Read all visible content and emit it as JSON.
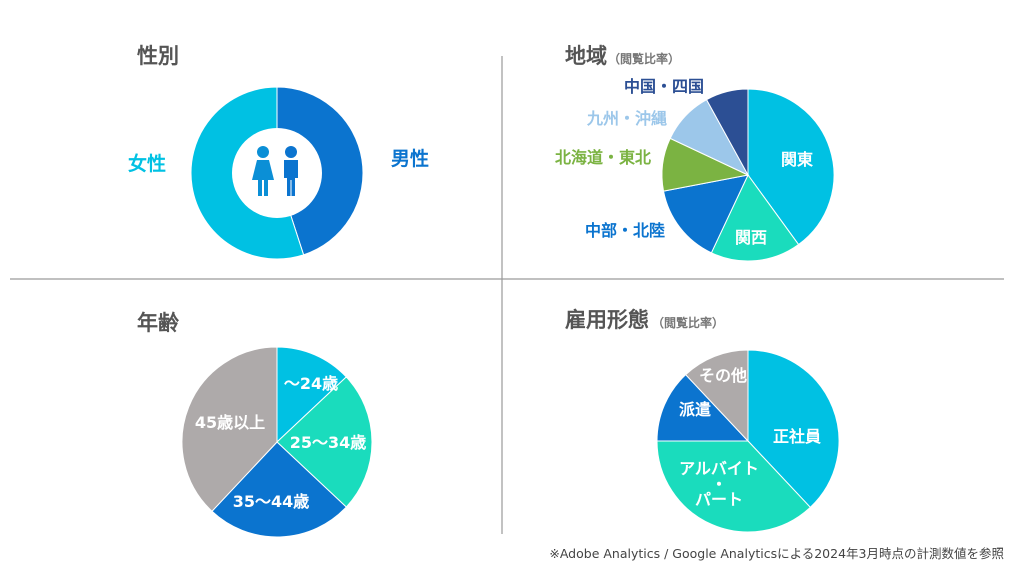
{
  "colors": {
    "cyan": "#00C1E3",
    "blue": "#0B74CF",
    "teal": "#1ADCBD",
    "gray": "#AEAAAA",
    "green": "#7BB342",
    "lightblue": "#9CC7EA",
    "navy": "#2C4F94",
    "divider": "#9A9A9A",
    "title": "#555555"
  },
  "panels": {
    "gender": {
      "title": "性別",
      "subtitle": ""
    },
    "region": {
      "title": "地域",
      "subtitle": "（閲覧比率）"
    },
    "age": {
      "title": "年齢",
      "subtitle": ""
    },
    "employment": {
      "title": "雇用形態",
      "subtitle": "（閲覧比率）"
    }
  },
  "gender_icons": [
    "female-person-icon",
    "male-person-icon"
  ],
  "footnote": "※Adobe Analytics / Google Analyticsによる2024年3月時点の計測数値を参照",
  "chart_data": [
    {
      "id": "gender",
      "type": "pie",
      "donut": true,
      "title": "性別",
      "start_angle_deg": 0,
      "slices": [
        {
          "label": "男性",
          "value": 45,
          "color": "#0B74CF"
        },
        {
          "label": "女性",
          "value": 55,
          "color": "#00C1E3"
        }
      ]
    },
    {
      "id": "region",
      "type": "pie",
      "title": "地域",
      "subtitle": "（閲覧比率）",
      "start_angle_deg": 0,
      "slices": [
        {
          "label": "関東",
          "value": 40,
          "color": "#00C1E3"
        },
        {
          "label": "関西",
          "value": 17,
          "color": "#1ADCBD"
        },
        {
          "label": "中部・北陸",
          "value": 15,
          "color": "#0B74CF"
        },
        {
          "label": "北海道・東北",
          "value": 10,
          "color": "#7BB342"
        },
        {
          "label": "九州・沖縄",
          "value": 10,
          "color": "#9CC7EA"
        },
        {
          "label": "中国・四国",
          "value": 8,
          "color": "#2C4F94"
        }
      ]
    },
    {
      "id": "age",
      "type": "pie",
      "title": "年齢",
      "start_angle_deg": 0,
      "slices": [
        {
          "label": "～24歳",
          "value": 13,
          "color": "#00C1E3"
        },
        {
          "label": "25～34歳",
          "value": 24,
          "color": "#1ADCBD"
        },
        {
          "label": "35～44歳",
          "value": 25,
          "color": "#0B74CF"
        },
        {
          "label": "45歳以上",
          "value": 38,
          "color": "#AEAAAA"
        }
      ]
    },
    {
      "id": "employment",
      "type": "pie",
      "title": "雇用形態",
      "subtitle": "（閲覧比率）",
      "start_angle_deg": 0,
      "slices": [
        {
          "label": "正社員",
          "value": 38,
          "color": "#00C1E3"
        },
        {
          "label": "アルバイト・パート",
          "value": 37,
          "color": "#1ADCBD"
        },
        {
          "label": "派遣",
          "value": 13,
          "color": "#0B74CF"
        },
        {
          "label": "その他",
          "value": 12,
          "color": "#AEAAAA"
        }
      ]
    }
  ]
}
